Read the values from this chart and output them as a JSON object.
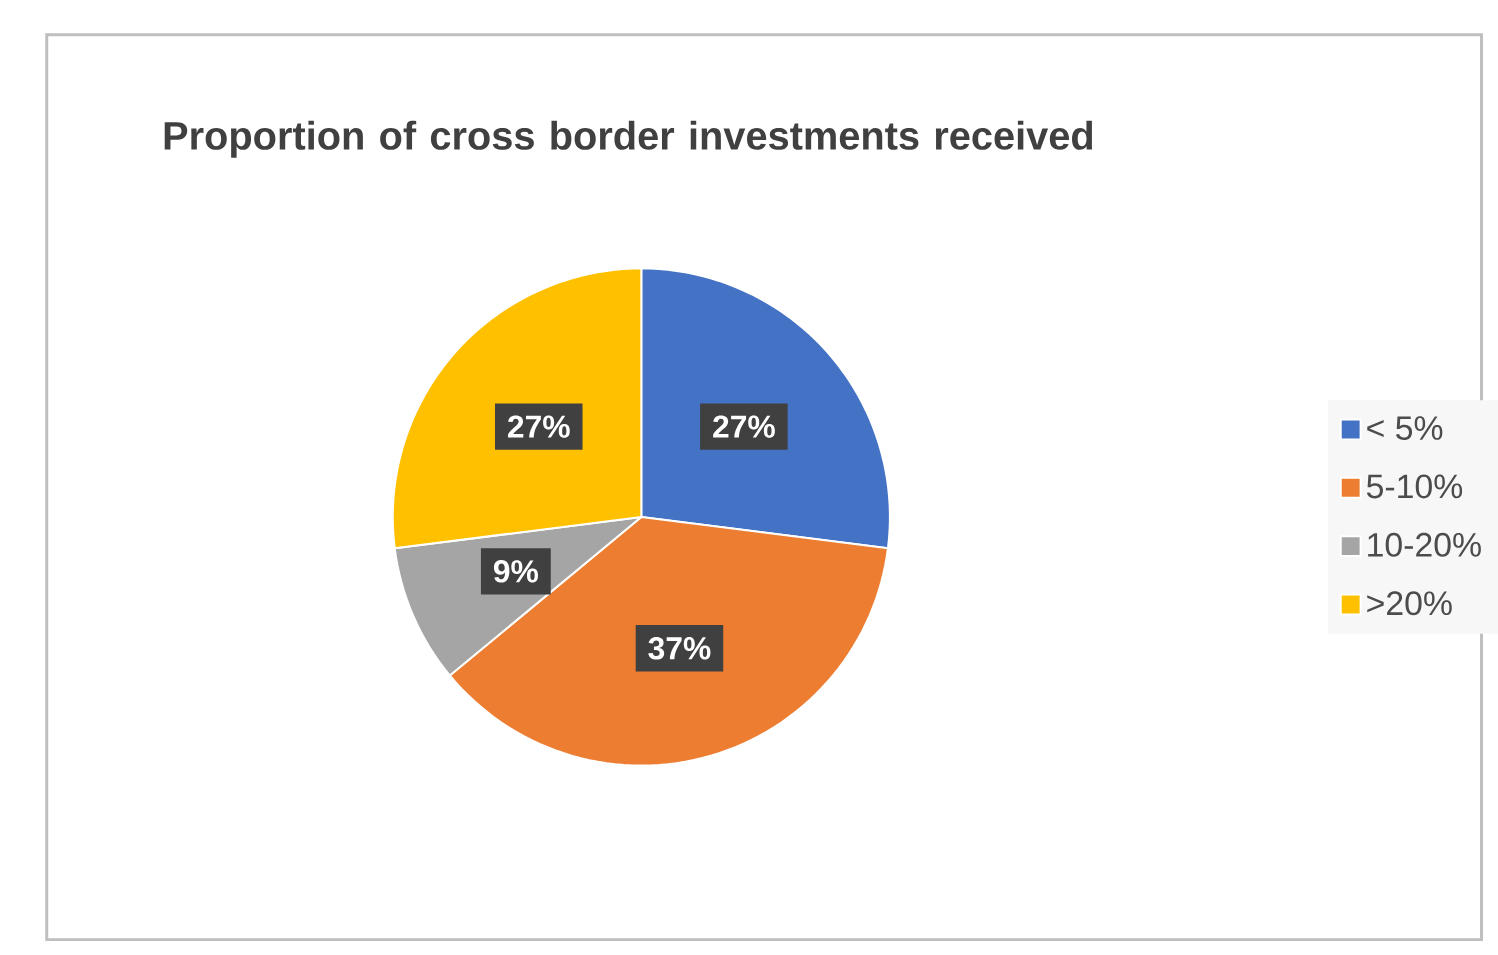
{
  "chart_data": {
    "type": "pie",
    "title": "Proportion of cross border investments received",
    "categories": [
      "< 5%",
      "5-10%",
      "10-20%",
      ">20%"
    ],
    "values": [
      27,
      37,
      9,
      27
    ],
    "colors": [
      "#4472c4",
      "#ed7d31",
      "#a5a5a5",
      "#ffc000"
    ],
    "value_labels": [
      "27%",
      "37%",
      "9%",
      "27%"
    ],
    "legend": "right"
  }
}
